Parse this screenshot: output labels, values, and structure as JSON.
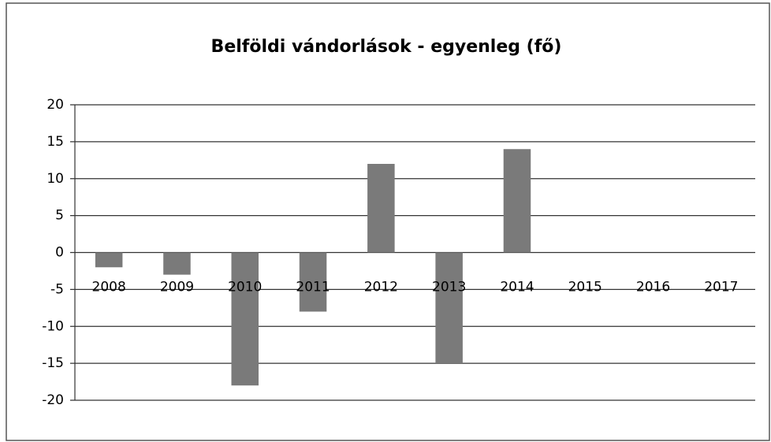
{
  "chart_data": {
    "type": "bar",
    "title": "Belföldi vándorlások - egyenleg (fő)",
    "categories": [
      "2008",
      "2009",
      "2010",
      "2011",
      "2012",
      "2013",
      "2014",
      "2015",
      "2016",
      "2017"
    ],
    "values": [
      -2,
      -3,
      -18,
      -8,
      12,
      -15,
      14,
      null,
      null,
      null
    ],
    "color": "#7a7a7a",
    "ylim": [
      -20,
      20
    ],
    "yticks": [
      -20,
      -15,
      -10,
      -5,
      0,
      5,
      10,
      15,
      20
    ],
    "grid": true
  }
}
